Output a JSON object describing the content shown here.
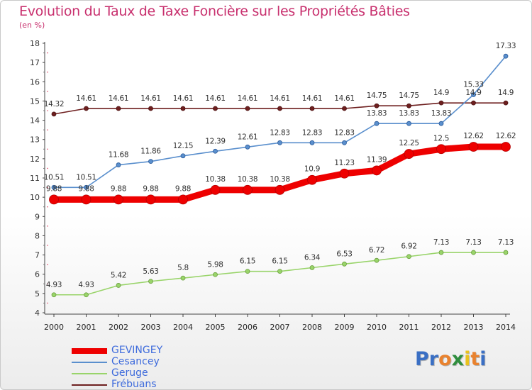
{
  "title": "Evolution du Taux de Taxe Foncière sur les Propriétés Bâties",
  "unit_label": "(en %)",
  "logo": {
    "letters": [
      "P",
      "r",
      "o",
      "x",
      "i",
      "t",
      "i"
    ],
    "colors": [
      "#3a6fc4",
      "#3a6fc4",
      "#e9822e",
      "#2f8e3e",
      "#e9c21e",
      "#e9822e",
      "#3a6fc4"
    ]
  },
  "chart_data": {
    "type": "line",
    "title": "Evolution du Taux de Taxe Foncière sur les Propriétés Bâties",
    "ylabel": "(en %)",
    "xlabel": "",
    "ylim": [
      4,
      18
    ],
    "yticks": [
      "4",
      "5",
      "6",
      "7",
      "8",
      "9",
      "10",
      "11",
      "12",
      "13",
      "14",
      "15",
      "16",
      "17",
      "18"
    ],
    "grid": false,
    "legend_position": "bottom-left",
    "x": [
      "2000",
      "2001",
      "2002",
      "2003",
      "2004",
      "2005",
      "2006",
      "2007",
      "2008",
      "2009",
      "2010",
      "2011",
      "2012",
      "2013",
      "2014"
    ],
    "series": [
      {
        "name": "Frébuans",
        "color": "#6e1f1f",
        "values": [
          14.32,
          14.61,
          14.61,
          14.61,
          14.61,
          14.61,
          14.61,
          14.61,
          14.61,
          14.61,
          14.75,
          14.75,
          14.9,
          14.9,
          14.9
        ],
        "labels": [
          "14.32",
          "14.61",
          "14.61",
          "14.61",
          "14.61",
          "14.61",
          "14.61",
          "14.61",
          "14.61",
          "14.61",
          "14.75",
          "14.75",
          "14.9",
          "14.9",
          "14.9"
        ]
      },
      {
        "name": "Cesancey",
        "color": "#5a8fcd",
        "values": [
          10.51,
          10.51,
          11.68,
          11.86,
          12.15,
          12.39,
          12.61,
          12.83,
          12.83,
          12.83,
          13.83,
          13.83,
          13.83,
          15.33,
          17.33
        ],
        "labels": [
          "10.51",
          "10.51",
          "11.68",
          "11.86",
          "12.15",
          "12.39",
          "12.61",
          "12.83",
          "12.83",
          "12.83",
          "13.83",
          "13.83",
          "13.83",
          "15.33",
          "17.33"
        ]
      },
      {
        "name": "GEVINGEY",
        "color": "#ee0000",
        "values": [
          9.88,
          9.88,
          9.88,
          9.88,
          9.88,
          10.38,
          10.38,
          10.38,
          10.9,
          11.23,
          11.39,
          12.25,
          12.5,
          12.62,
          12.62
        ],
        "labels": [
          "9.88",
          "9.88",
          "9.88",
          "9.88",
          "9.88",
          "10.38",
          "10.38",
          "10.38",
          "10.9",
          "11.23",
          "11.39",
          "12.25",
          "12.5",
          "12.62",
          "12.62"
        ]
      },
      {
        "name": "Geruge",
        "color": "#99d46a",
        "values": [
          4.93,
          4.93,
          5.42,
          5.63,
          5.8,
          5.98,
          6.15,
          6.15,
          6.34,
          6.53,
          6.72,
          6.92,
          7.13,
          7.13,
          7.13
        ],
        "labels": [
          "4.93",
          "4.93",
          "5.42",
          "5.63",
          "5.8",
          "5.98",
          "6.15",
          "6.15",
          "6.34",
          "6.53",
          "6.72",
          "6.92",
          "7.13",
          "7.13",
          "7.13"
        ]
      }
    ],
    "legend": [
      {
        "name": "GEVINGEY",
        "color": "#ee0000"
      },
      {
        "name": "Cesancey",
        "color": "#5a8fcd"
      },
      {
        "name": "Geruge",
        "color": "#99d46a"
      },
      {
        "name": "Frébuans",
        "color": "#6e1f1f"
      }
    ]
  }
}
